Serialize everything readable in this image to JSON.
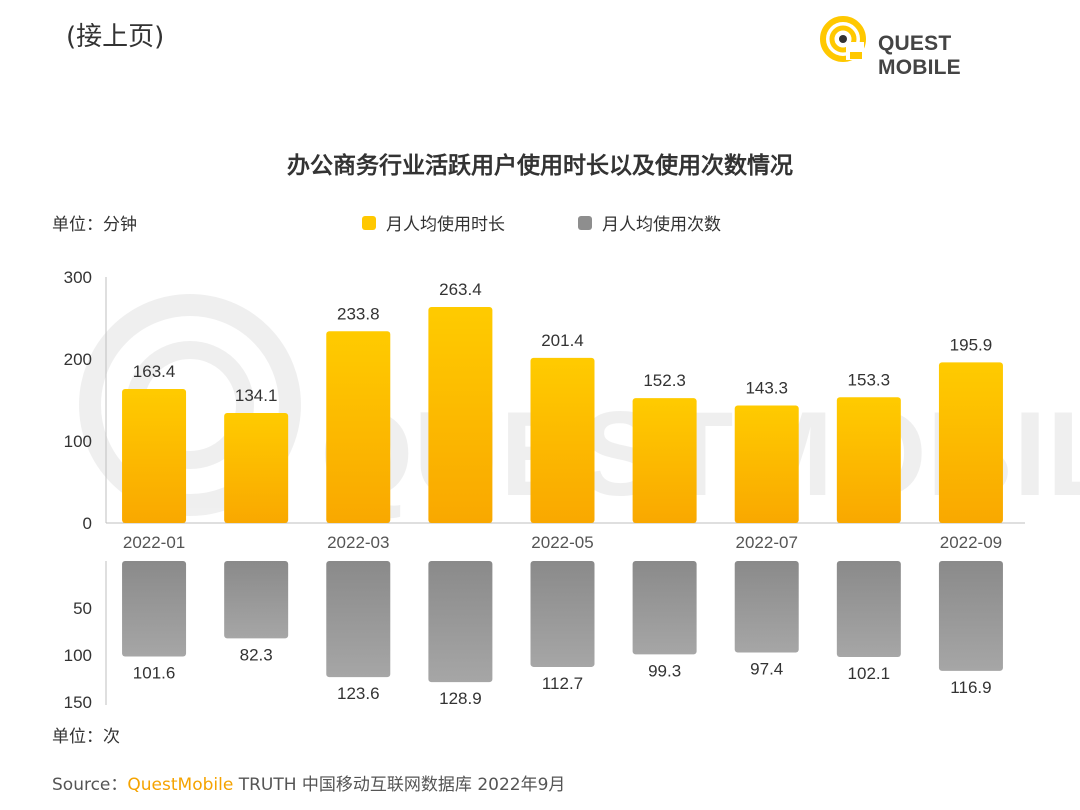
{
  "header": {
    "continued": "(接上页)",
    "logo_text": "QUEST MOBILE"
  },
  "colors": {
    "bar_top": "#FFC800",
    "bar_top_dark": "#F7A600",
    "bar_bottom": "#8E8E8E",
    "bar_bottom_dark": "#A8A8A8",
    "axis": "#BFBFBF",
    "brand": "#F5A300"
  },
  "chart_data": {
    "type": "bar",
    "title": "办公商务行业活跃用户使用时长以及使用次数情况",
    "categories": [
      "2022-01",
      "2022-02",
      "2022-03",
      "2022-04",
      "2022-05",
      "2022-06",
      "2022-07",
      "2022-08",
      "2022-09"
    ],
    "x_tick_labels": [
      "2022-01",
      "",
      "2022-03",
      "",
      "2022-05",
      "",
      "2022-07",
      "",
      "2022-09"
    ],
    "series": [
      {
        "name": "月人均使用时长",
        "unit_label": "单位：分钟",
        "values": [
          163.4,
          134.1,
          233.8,
          263.4,
          201.4,
          152.3,
          143.3,
          153.3,
          195.9
        ],
        "ylim": [
          0,
          300
        ],
        "yticks": [
          "0",
          "100",
          "200",
          "300"
        ],
        "ytick_values": [
          0,
          100,
          200,
          300
        ]
      },
      {
        "name": "月人均使用次数",
        "unit_label": "单位：次",
        "values": [
          101.6,
          82.3,
          123.6,
          128.9,
          112.7,
          99.3,
          97.4,
          102.1,
          116.9
        ],
        "ylim": [
          0,
          150
        ],
        "inverted": true,
        "yticks": [
          "50",
          "100",
          "150"
        ],
        "ytick_values": [
          50,
          100,
          150
        ]
      }
    ],
    "legend_position": "top-center",
    "grid": false
  },
  "source": {
    "prefix": "Source：",
    "brand": "QuestMobile",
    "rest": " TRUTH 中国移动互联网数据库 2022年9月"
  }
}
